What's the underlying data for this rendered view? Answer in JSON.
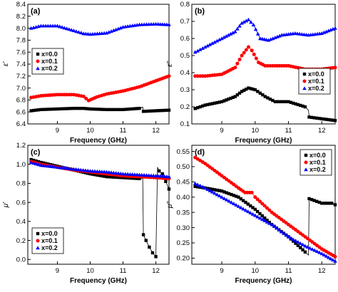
{
  "chart_data": [
    {
      "panel": "(a)",
      "type": "scatter",
      "xlabel": "Frequency (GHz)",
      "ylabel": "ε'",
      "xlim": [
        8.1,
        12.4
      ],
      "ylim": [
        6.4,
        8.4
      ],
      "xticks": [
        8,
        9,
        10,
        11,
        12
      ],
      "yticks": [
        6.4,
        6.6,
        6.8,
        7.0,
        7.2,
        7.4,
        7.6,
        7.8,
        8.0,
        8.2,
        8.4
      ],
      "legend_position": "center-left",
      "series": [
        {
          "name": "x=0.0",
          "color": "#000000",
          "marker": "square",
          "x": [
            8.2,
            8.5,
            9.0,
            9.5,
            9.8,
            10.0,
            10.5,
            11.0,
            11.5,
            11.6,
            11.62,
            12.0,
            12.4
          ],
          "y": [
            6.62,
            6.64,
            6.65,
            6.66,
            6.66,
            6.65,
            6.64,
            6.64,
            6.66,
            6.68,
            6.61,
            6.62,
            6.63
          ]
        },
        {
          "name": "x=0.1",
          "color": "#ff0000",
          "marker": "circle",
          "x": [
            8.2,
            8.5,
            9.0,
            9.5,
            9.8,
            9.95,
            10.2,
            10.5,
            11.0,
            11.5,
            12.0,
            12.4
          ],
          "y": [
            6.84,
            6.87,
            6.89,
            6.89,
            6.86,
            6.79,
            6.85,
            6.9,
            6.95,
            7.02,
            7.12,
            7.2
          ]
        },
        {
          "name": "x=0.2",
          "color": "#0000ff",
          "marker": "triangle",
          "x": [
            8.2,
            8.5,
            9.0,
            9.5,
            9.8,
            10.0,
            10.5,
            11.0,
            11.5,
            12.0,
            12.4
          ],
          "y": [
            8.0,
            8.04,
            8.04,
            7.96,
            7.91,
            7.9,
            7.92,
            8.02,
            8.06,
            8.07,
            8.06
          ]
        }
      ]
    },
    {
      "panel": "(b)",
      "type": "scatter",
      "xlabel": "Frequency (GHz)",
      "ylabel": "ε''",
      "xlim": [
        8.1,
        12.4
      ],
      "ylim": [
        0.1,
        0.8
      ],
      "xticks": [
        8,
        9,
        10,
        11,
        12
      ],
      "yticks": [
        0.1,
        0.2,
        0.3,
        0.4,
        0.5,
        0.6,
        0.7,
        0.8
      ],
      "legend_position": "center-right",
      "series": [
        {
          "name": "x=0.0",
          "color": "#000000",
          "marker": "square",
          "x": [
            8.2,
            8.5,
            9.0,
            9.4,
            9.6,
            9.8,
            10.0,
            10.3,
            10.6,
            11.0,
            11.5,
            11.6,
            11.62,
            12.0,
            12.4
          ],
          "y": [
            0.19,
            0.21,
            0.23,
            0.26,
            0.29,
            0.31,
            0.3,
            0.26,
            0.23,
            0.23,
            0.2,
            0.18,
            0.14,
            0.13,
            0.12
          ]
        },
        {
          "name": "x=0.1",
          "color": "#ff0000",
          "marker": "circle",
          "x": [
            8.2,
            8.5,
            9.0,
            9.4,
            9.6,
            9.8,
            9.9,
            10.1,
            10.3,
            10.6,
            11.0,
            11.5,
            12.0,
            12.4
          ],
          "y": [
            0.38,
            0.38,
            0.39,
            0.43,
            0.5,
            0.55,
            0.53,
            0.46,
            0.44,
            0.44,
            0.44,
            0.42,
            0.42,
            0.43
          ]
        },
        {
          "name": "x=0.2",
          "color": "#0000ff",
          "marker": "triangle",
          "x": [
            8.2,
            8.5,
            9.0,
            9.4,
            9.6,
            9.8,
            9.95,
            10.15,
            10.4,
            10.8,
            11.2,
            11.6,
            12.0,
            12.4
          ],
          "y": [
            0.52,
            0.55,
            0.6,
            0.64,
            0.69,
            0.71,
            0.68,
            0.6,
            0.59,
            0.62,
            0.63,
            0.62,
            0.63,
            0.66
          ]
        }
      ]
    },
    {
      "panel": "(c)",
      "type": "scatter",
      "xlabel": "Frequency (GHz)",
      "ylabel": "μ'",
      "xlim": [
        8.1,
        12.4
      ],
      "ylim": [
        -0.05,
        1.2
      ],
      "xticks": [
        8,
        9,
        10,
        11,
        12
      ],
      "yticks": [
        0.0,
        0.2,
        0.4,
        0.6,
        0.8,
        1.0,
        1.2
      ],
      "legend_position": "bottom-left",
      "series": [
        {
          "name": "x=0.0",
          "color": "#000000",
          "marker": "square",
          "x": [
            8.2,
            8.5,
            9.0,
            9.5,
            10.0,
            10.5,
            11.0,
            11.5,
            11.6,
            11.62,
            11.7,
            11.8,
            11.9,
            12.0,
            12.05,
            12.1,
            12.2,
            12.3,
            12.4
          ],
          "y": [
            1.05,
            1.02,
            0.98,
            0.94,
            0.9,
            0.87,
            0.86,
            0.85,
            0.85,
            0.26,
            0.2,
            0.13,
            0.07,
            0.03,
            0.97,
            0.93,
            0.9,
            0.82,
            0.74
          ]
        },
        {
          "name": "x=0.1",
          "color": "#ff0000",
          "marker": "circle",
          "x": [
            8.2,
            8.5,
            9.0,
            9.5,
            10.0,
            10.5,
            11.0,
            11.5,
            12.0,
            12.4
          ],
          "y": [
            1.03,
            1.0,
            0.97,
            0.94,
            0.92,
            0.9,
            0.88,
            0.87,
            0.86,
            0.85
          ]
        },
        {
          "name": "x=0.2",
          "color": "#0000ff",
          "marker": "triangle",
          "x": [
            8.2,
            8.5,
            9.0,
            9.5,
            10.0,
            10.5,
            11.0,
            11.5,
            12.0,
            12.4
          ],
          "y": [
            1.02,
            0.99,
            0.97,
            0.95,
            0.93,
            0.92,
            0.9,
            0.89,
            0.88,
            0.87
          ]
        }
      ]
    },
    {
      "panel": "(d)",
      "type": "scatter",
      "xlabel": "Frequency (GHz)",
      "ylabel": "μ''",
      "xlim": [
        8.1,
        12.4
      ],
      "ylim": [
        0.18,
        0.57
      ],
      "xticks": [
        8,
        9,
        10,
        11,
        12
      ],
      "yticks": [
        0.2,
        0.25,
        0.3,
        0.35,
        0.4,
        0.45,
        0.5,
        0.55
      ],
      "legend_position": "top-right",
      "series": [
        {
          "name": "x=0.0",
          "color": "#000000",
          "marker": "square",
          "x": [
            8.2,
            8.5,
            9.0,
            9.5,
            10.0,
            10.5,
            11.0,
            11.5,
            11.6,
            11.62,
            12.0,
            12.3,
            12.4
          ],
          "y": [
            0.435,
            0.43,
            0.42,
            0.4,
            0.36,
            0.31,
            0.27,
            0.22,
            0.21,
            0.395,
            0.38,
            0.38,
            0.375
          ]
        },
        {
          "name": "x=0.1",
          "color": "#ff0000",
          "marker": "circle",
          "x": [
            8.2,
            8.5,
            9.0,
            9.5,
            9.7,
            9.9,
            10.0,
            10.5,
            11.0,
            11.5,
            12.0,
            12.4
          ],
          "y": [
            0.53,
            0.51,
            0.47,
            0.43,
            0.415,
            0.415,
            0.4,
            0.35,
            0.31,
            0.27,
            0.23,
            0.205
          ]
        },
        {
          "name": "x=0.2",
          "color": "#0000ff",
          "marker": "triangle",
          "x": [
            8.2,
            8.5,
            9.0,
            9.5,
            10.0,
            10.5,
            11.0,
            11.5,
            12.0,
            12.4
          ],
          "y": [
            0.445,
            0.43,
            0.4,
            0.37,
            0.34,
            0.31,
            0.27,
            0.24,
            0.215,
            0.19
          ]
        }
      ]
    }
  ]
}
